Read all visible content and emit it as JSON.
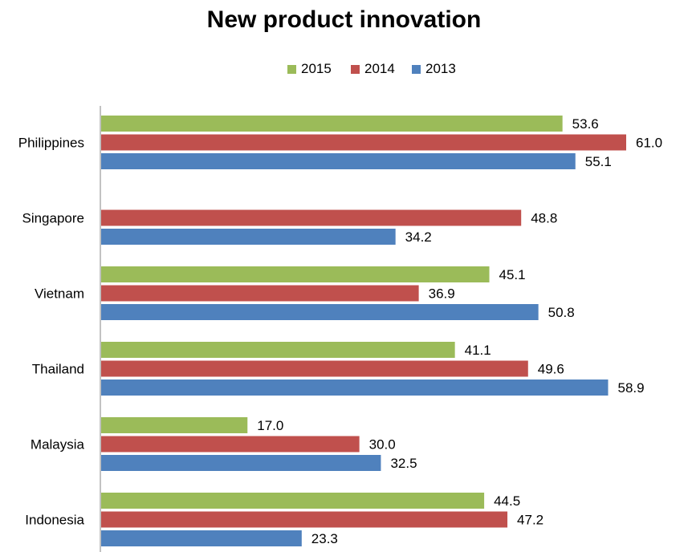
{
  "chart_data": {
    "type": "bar",
    "orientation": "horizontal",
    "title": "New product innovation",
    "xlabel": "",
    "ylabel": "",
    "xlim": [
      0,
      62
    ],
    "grid": false,
    "legend_position": "top",
    "categories": [
      "Philippines",
      "Singapore",
      "Vietnam",
      "Thailand",
      "Malaysia",
      "Indonesia"
    ],
    "series": [
      {
        "name": "2015",
        "color": "#9BBB59",
        "values": [
          53.6,
          null,
          45.1,
          41.1,
          17.0,
          44.5
        ],
        "labels": [
          "53.6",
          "",
          "45.1",
          "41.1",
          "17.0",
          "44.5"
        ]
      },
      {
        "name": "2014",
        "color": "#C0504D",
        "values": [
          61.0,
          48.8,
          36.9,
          49.6,
          30.0,
          47.2
        ],
        "labels": [
          "61.0",
          "48.8",
          "36.9",
          "49.6",
          "30.0",
          "47.2"
        ]
      },
      {
        "name": "2013",
        "color": "#4F81BD",
        "values": [
          55.1,
          34.2,
          50.8,
          58.9,
          32.5,
          23.3
        ],
        "labels": [
          "55.1",
          "34.2",
          "50.8",
          "58.9",
          "32.5",
          "23.3"
        ]
      }
    ]
  }
}
